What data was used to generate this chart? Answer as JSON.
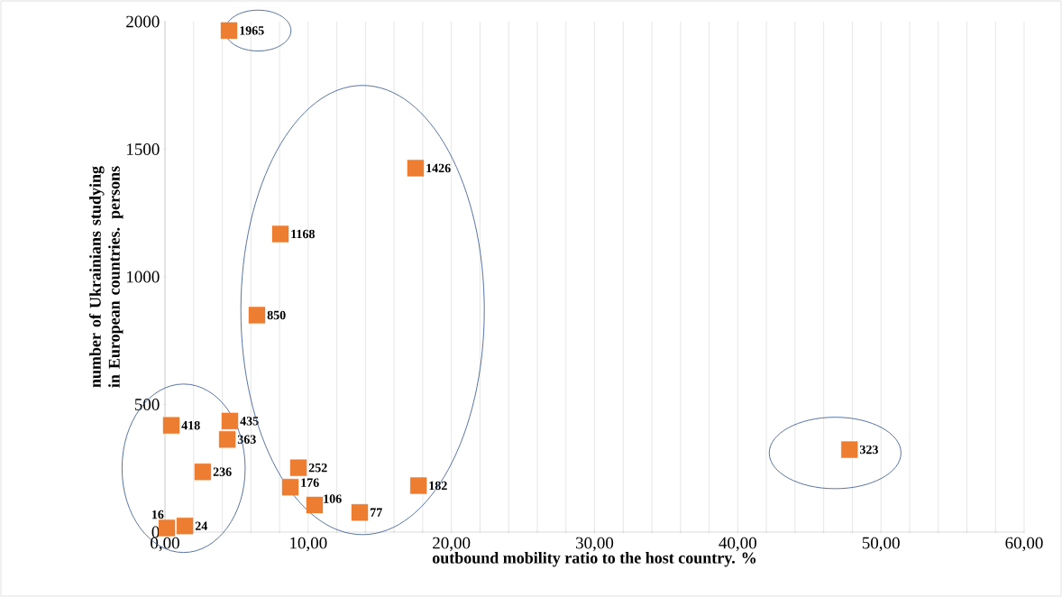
{
  "chart_data": {
    "type": "scatter",
    "xlabel": "outbound mobility ratio to the host country. %",
    "ylabel": "number of Ukrainians studying in European countries. persons",
    "x": [
      4.47,
      17.5,
      8.06,
      6.42,
      0.44,
      4.53,
      4.35,
      2.64,
      9.32,
      8.75,
      10.45,
      13.6,
      17.7,
      47.8,
      0.13,
      1.39
    ],
    "series": [
      {
        "color": "#ed7d31",
        "values": [
          1965,
          1426,
          1168,
          850,
          418,
          435,
          363,
          236,
          252,
          176,
          106,
          77,
          182,
          323,
          16,
          24
        ]
      }
    ],
    "data_labels": true,
    "marker": "square",
    "grid": "x",
    "xlim": [
      0,
      60
    ],
    "ylim": [
      0,
      2000
    ],
    "xticks": [
      {
        "value": 0,
        "label": "0,00"
      },
      {
        "value": 10,
        "label": "10,00"
      },
      {
        "value": 20,
        "label": "20,00"
      },
      {
        "value": 30,
        "label": "30,00"
      },
      {
        "value": 40,
        "label": "40,00"
      },
      {
        "value": 50,
        "label": "50,00"
      },
      {
        "value": 60,
        "label": "60,00"
      }
    ],
    "yticks": [
      0,
      500,
      1000,
      1500,
      2000
    ]
  }
}
